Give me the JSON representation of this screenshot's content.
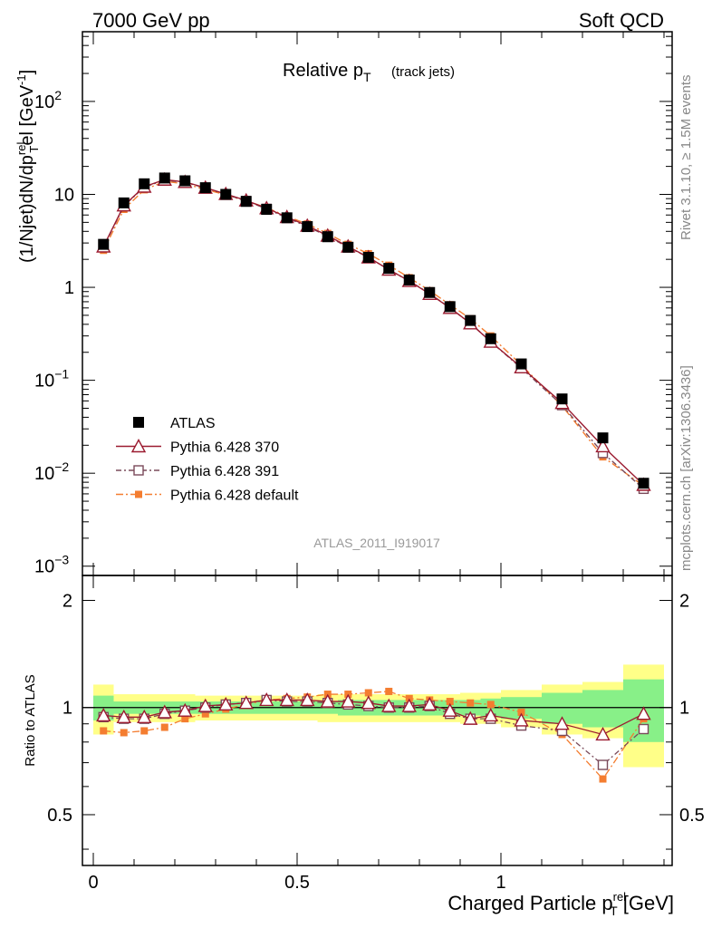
{
  "header": {
    "left": "7000 GeV pp",
    "right": "Soft QCD"
  },
  "side": {
    "rivet": "Rivet 3.1.10, ≥ 1.5M events",
    "mcplots": "mcplots.cern.ch [arXiv:1306.3436]"
  },
  "plot_title": {
    "main": "Relative p",
    "sub": "T",
    "note": "(track jets)"
  },
  "analysis_id": "ATLAS_2011_I919017",
  "colors": {
    "atlas": "#000000",
    "p370": "#9b1b30",
    "p391": "#7a4a5a",
    "pdef": "#f47d30",
    "band_stat": "#88f088",
    "band_tot": "#ffff88"
  },
  "chart_data": [
    {
      "type": "line",
      "scale": "log",
      "title": "Relative pT (track jets)",
      "ylabel": "(1/Njet)dN/dp^rel_T [GeV^-1]",
      "yticks": [
        {
          "v": 0.001,
          "base": "10",
          "exp": "−3"
        },
        {
          "v": 0.01,
          "base": "10",
          "exp": "−2"
        },
        {
          "v": 0.1,
          "base": "10",
          "exp": "−1"
        },
        {
          "v": 1,
          "base": "1",
          "exp": ""
        },
        {
          "v": 10,
          "base": "10",
          "exp": ""
        },
        {
          "v": 100,
          "base": "10",
          "exp": "2"
        }
      ],
      "x": [
        0.025,
        0.075,
        0.125,
        0.175,
        0.225,
        0.275,
        0.325,
        0.375,
        0.425,
        0.475,
        0.525,
        0.575,
        0.625,
        0.675,
        0.725,
        0.775,
        0.825,
        0.875,
        0.925,
        0.975,
        1.05,
        1.15,
        1.25,
        1.35
      ],
      "series": [
        {
          "name": "ATLAS",
          "key": "atlas",
          "values": [
            2.9,
            8.1,
            13.0,
            15.0,
            14.0,
            11.8,
            10.0,
            8.4,
            6.9,
            5.6,
            4.5,
            3.5,
            2.7,
            2.1,
            1.6,
            1.2,
            0.88,
            0.62,
            0.44,
            0.28,
            0.15,
            0.063,
            0.024,
            0.0078
          ]
        },
        {
          "name": "Pythia 6.428 370",
          "key": "p370",
          "values": [
            2.75,
            7.6,
            12.1,
            14.4,
            13.6,
            11.8,
            10.1,
            8.6,
            7.1,
            5.7,
            4.6,
            3.6,
            2.75,
            2.1,
            1.55,
            1.17,
            0.85,
            0.6,
            0.41,
            0.26,
            0.138,
            0.057,
            0.0195,
            0.0075
          ]
        },
        {
          "name": "Pythia 6.428 391",
          "key": "p391",
          "values": [
            2.7,
            7.5,
            12.0,
            14.2,
            13.5,
            11.7,
            10.0,
            8.5,
            7.0,
            5.6,
            4.5,
            3.55,
            2.7,
            2.1,
            1.55,
            1.17,
            0.86,
            0.6,
            0.41,
            0.26,
            0.135,
            0.054,
            0.0165,
            0.0068
          ]
        },
        {
          "name": "Pythia 6.428 default",
          "key": "pdef",
          "values": [
            2.5,
            6.9,
            11.2,
            13.8,
            13.0,
            11.3,
            9.9,
            8.5,
            7.2,
            5.8,
            4.8,
            3.8,
            2.9,
            2.3,
            1.73,
            1.27,
            0.92,
            0.65,
            0.46,
            0.3,
            0.146,
            0.053,
            0.015,
            0.0073
          ]
        }
      ],
      "legend": [
        "ATLAS",
        "Pythia 6.428 370",
        "Pythia 6.428 391",
        "Pythia 6.428 default"
      ],
      "legend_position": "bottom-left"
    },
    {
      "type": "line",
      "title": "",
      "ylabel": "Ratio to ATLAS",
      "xlabel": "Charged Particle p^rel_T [GeV]",
      "xticks": [
        "0",
        "0.5",
        "1"
      ],
      "yticks": [
        "0.5",
        "1",
        "2"
      ],
      "x": [
        0.025,
        0.075,
        0.125,
        0.175,
        0.225,
        0.275,
        0.325,
        0.375,
        0.425,
        0.475,
        0.525,
        0.575,
        0.625,
        0.675,
        0.725,
        0.775,
        0.825,
        0.875,
        0.925,
        0.975,
        1.05,
        1.15,
        1.25,
        1.35
      ],
      "series": [
        {
          "name": "Pythia 6.428 370",
          "key": "p370",
          "values": [
            0.95,
            0.94,
            0.94,
            0.97,
            0.98,
            1.01,
            1.02,
            1.03,
            1.05,
            1.05,
            1.05,
            1.04,
            1.04,
            1.03,
            1.01,
            1.01,
            1.02,
            0.98,
            0.93,
            0.95,
            0.92,
            0.9,
            0.84,
            0.96
          ]
        },
        {
          "name": "Pythia 6.428 391",
          "key": "p391",
          "values": [
            0.94,
            0.93,
            0.93,
            0.96,
            0.98,
            1.0,
            1.02,
            1.03,
            1.05,
            1.04,
            1.04,
            1.03,
            1.02,
            1.01,
            1.0,
            1.0,
            1.01,
            0.96,
            0.93,
            0.93,
            0.89,
            0.86,
            0.69,
            0.87
          ]
        },
        {
          "name": "Pythia 6.428 default",
          "key": "pdef",
          "values": [
            0.86,
            0.85,
            0.86,
            0.88,
            0.93,
            0.96,
            0.99,
            1.02,
            1.05,
            1.06,
            1.07,
            1.09,
            1.09,
            1.1,
            1.11,
            1.06,
            1.05,
            1.04,
            1.03,
            1.02,
            0.97,
            0.84,
            0.63,
            0.93
          ]
        }
      ],
      "bands": {
        "edges": [
          0.0,
          0.05,
          0.1,
          0.15,
          0.2,
          0.25,
          0.3,
          0.35,
          0.4,
          0.45,
          0.5,
          0.55,
          0.6,
          0.65,
          0.7,
          0.75,
          0.8,
          0.85,
          0.9,
          0.95,
          1.0,
          1.1,
          1.2,
          1.3,
          1.4
        ],
        "stat": [
          0.08,
          0.04,
          0.04,
          0.04,
          0.04,
          0.04,
          0.04,
          0.04,
          0.04,
          0.04,
          0.04,
          0.04,
          0.05,
          0.05,
          0.05,
          0.05,
          0.05,
          0.05,
          0.05,
          0.06,
          0.07,
          0.1,
          0.12,
          0.2
        ],
        "total": [
          0.16,
          0.09,
          0.09,
          0.09,
          0.09,
          0.08,
          0.08,
          0.08,
          0.08,
          0.08,
          0.08,
          0.09,
          0.09,
          0.09,
          0.09,
          0.09,
          0.09,
          0.09,
          0.1,
          0.1,
          0.12,
          0.16,
          0.18,
          0.32
        ]
      }
    }
  ],
  "texts": {
    "ratio_ylabel": "Ratio to ATLAS",
    "xlabel_main": "Charged Particle p",
    "xlabel_sub": "T",
    "xlabel_sup": "rel",
    "xlabel_unit": "[GeV]",
    "ylabel_a": "(1/Njet)dN/dp",
    "ylabel_sup": "rel",
    "ylabel_sub": "T",
    "ylabel_unit": "[GeV",
    "ylabel_exp": "-1",
    "ylabel_close": "]"
  }
}
